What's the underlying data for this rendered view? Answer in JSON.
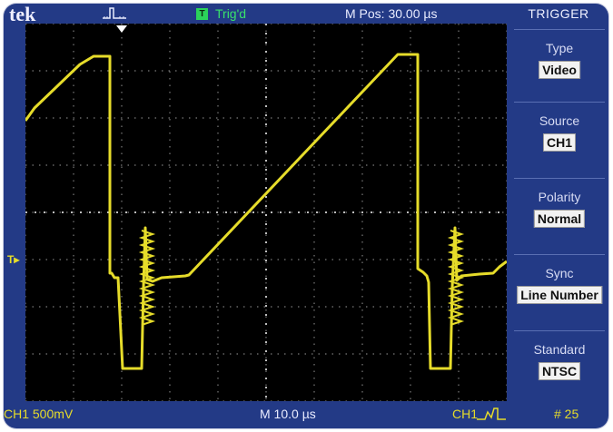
{
  "header": {
    "brand": "tek",
    "trigger_status_badge": "T",
    "trigger_status": "Trig'd",
    "position": "M Pos: 30.00 µs"
  },
  "menu": {
    "title": "TRIGGER",
    "items": [
      {
        "label": "Type",
        "value": "Video"
      },
      {
        "label": "Source",
        "value": "CH1"
      },
      {
        "label": "Polarity",
        "value": "Normal"
      },
      {
        "label": "Sync",
        "value": "Line Number"
      },
      {
        "label": "Standard",
        "value": "NTSC"
      }
    ]
  },
  "footer": {
    "channel_scale": "CH1  500mV",
    "timebase": "M 10.0 µs",
    "trigger_source": "CH1",
    "line_number": "# 25"
  },
  "screen": {
    "trigger_level_marker": "T▸",
    "trace_color": "#e6dc2a",
    "grid_color": "#7a7a7a"
  }
}
